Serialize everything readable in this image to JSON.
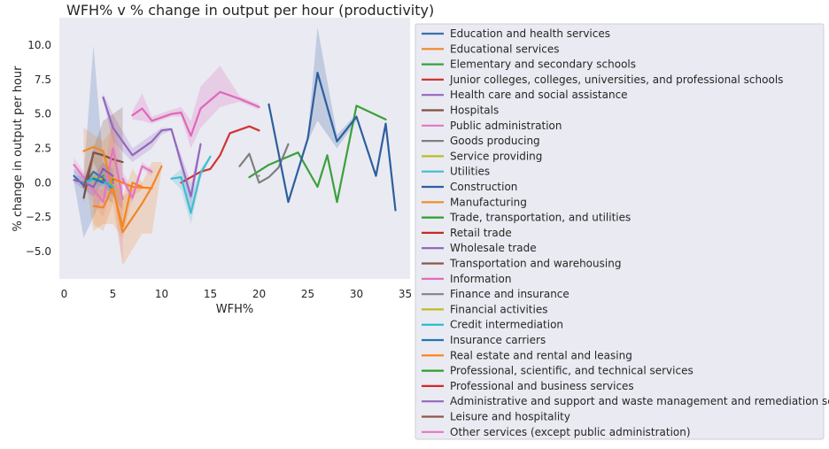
{
  "chart_data": {
    "type": "line",
    "title": "WFH% v % change in output per hour (productivity)",
    "xlabel": "WFH%",
    "ylabel": "% change in output per hour",
    "xlim": [
      -0.5,
      35.5
    ],
    "ylim": [
      -7,
      12
    ],
    "xticks": [
      "0",
      "5",
      "10",
      "15",
      "20",
      "25",
      "30",
      "35"
    ],
    "yticks": [
      "−5.0",
      "−2.5",
      "0.0",
      "2.5",
      "5.0",
      "7.5",
      "10.0"
    ],
    "grid": false,
    "legend_position": "right",
    "series": [
      {
        "name": "Education and health services",
        "color": "#3a6fb0",
        "points": [
          [
            1,
            0.5
          ],
          [
            2,
            -0.2
          ],
          [
            3,
            0.8
          ],
          [
            4,
            0.3
          ],
          [
            5,
            -0.5
          ]
        ],
        "band": [
          [
            1,
            1.0,
            0.0
          ],
          [
            2,
            0.5,
            -4.0
          ],
          [
            3,
            10.0,
            -2.5
          ],
          [
            4,
            1.5,
            -1.0
          ],
          [
            5,
            0.5,
            -1.5
          ]
        ]
      },
      {
        "name": "Educational services",
        "color": "#f0862a",
        "points": [
          [
            3,
            -1.7
          ],
          [
            4,
            -1.8
          ],
          [
            5,
            -0.3
          ],
          [
            6,
            -3.6
          ],
          [
            8,
            -1.5
          ],
          [
            9,
            -0.3
          ],
          [
            10,
            1.2
          ]
        ],
        "band": [
          [
            3,
            -0.5,
            -3.0
          ],
          [
            4,
            -0.5,
            -3.5
          ],
          [
            5,
            0.5,
            -1.5
          ],
          [
            6,
            -1.0,
            -6.0
          ],
          [
            8,
            0.0,
            -3.7
          ],
          [
            9,
            1.5,
            -3.7
          ],
          [
            10,
            1.5,
            1.0
          ]
        ]
      },
      {
        "name": "Elementary and secondary schools",
        "color": "#3aa13a",
        "points": [
          [
            19,
            0.4
          ],
          [
            21,
            1.3
          ],
          [
            24,
            2.2
          ],
          [
            26,
            -0.3
          ],
          [
            27,
            2.0
          ],
          [
            28,
            -1.4
          ],
          [
            30,
            5.6
          ],
          [
            33,
            4.6
          ]
        ]
      },
      {
        "name": "Junior colleges, colleges, universities, and professional schools",
        "color": "#d03434",
        "points": [
          [
            12,
            0.0
          ],
          [
            14,
            0.8
          ],
          [
            15,
            1.0
          ],
          [
            16,
            2.0
          ],
          [
            17,
            3.6
          ],
          [
            19,
            4.1
          ],
          [
            20,
            3.8
          ]
        ]
      },
      {
        "name": "Health care and social assistance",
        "color": "#9467bd",
        "points": [
          [
            4,
            6.2
          ],
          [
            5,
            4.0
          ],
          [
            7,
            2.0
          ],
          [
            9,
            3.0
          ],
          [
            10,
            3.8
          ],
          [
            11,
            3.9
          ],
          [
            13,
            -1.0
          ],
          [
            14,
            2.8
          ]
        ],
        "band": [
          [
            4,
            6.5,
            6.0
          ],
          [
            5,
            5.0,
            3.0
          ],
          [
            7,
            2.5,
            1.5
          ],
          [
            9,
            3.5,
            2.5
          ],
          [
            10,
            4.0,
            3.5
          ],
          [
            11,
            4.0,
            3.8
          ],
          [
            13,
            0.0,
            -2.0
          ],
          [
            14,
            3.0,
            2.5
          ]
        ]
      },
      {
        "name": "Hospitals",
        "color": "#7f4f3d",
        "points": [
          [
            2,
            -1.1
          ],
          [
            3,
            2.2
          ],
          [
            4,
            2.0
          ],
          [
            5,
            1.7
          ],
          [
            6,
            1.5
          ]
        ],
        "band": [
          [
            2,
            -0.5,
            -1.5
          ],
          [
            3,
            2.5,
            1.5
          ],
          [
            4,
            4.5,
            0.0
          ],
          [
            5,
            5.0,
            -1.0
          ],
          [
            6,
            5.5,
            -2.0
          ]
        ]
      },
      {
        "name": "Public administration",
        "color": "#e377c2",
        "points": [
          [
            1,
            1.3
          ],
          [
            2,
            0.4
          ],
          [
            3,
            -0.5
          ],
          [
            4,
            -1.4
          ],
          [
            5,
            2.5
          ],
          [
            6,
            -1.2
          ]
        ],
        "band": [
          [
            1,
            1.8,
            0.8
          ],
          [
            2,
            0.8,
            0.0
          ],
          [
            3,
            0.5,
            -1.5
          ],
          [
            4,
            0.0,
            -2.5
          ],
          [
            5,
            5.0,
            0.0
          ],
          [
            6,
            1.0,
            -6.0
          ]
        ]
      },
      {
        "name": "Goods producing",
        "color": "#7f7f7f",
        "points": [
          [
            18,
            1.2
          ],
          [
            19,
            2.1
          ],
          [
            20,
            0.0
          ],
          [
            21,
            0.4
          ],
          [
            22,
            1.1
          ],
          [
            23,
            2.8
          ]
        ]
      },
      {
        "name": "Service providing",
        "color": "#bcbd22",
        "points": [
          [
            3,
            0.5
          ],
          [
            4,
            0.2
          ]
        ]
      },
      {
        "name": "Utilities",
        "color": "#42bcd0",
        "points": [
          [
            11,
            0.3
          ],
          [
            12,
            0.4
          ],
          [
            13,
            -2.2
          ],
          [
            14,
            0.7
          ],
          [
            15,
            1.9
          ]
        ],
        "band": [
          [
            11,
            0.4,
            0.2
          ],
          [
            12,
            1.0,
            -0.5
          ],
          [
            13,
            -1.0,
            -3.0
          ],
          [
            14,
            1.0,
            0.3
          ],
          [
            15,
            2.0,
            1.8
          ]
        ]
      },
      {
        "name": "Construction",
        "color": "#2c5f9e",
        "points": [
          [
            21,
            5.7
          ],
          [
            23,
            -1.4
          ],
          [
            25,
            3.2
          ],
          [
            26,
            8.0
          ],
          [
            28,
            3.0
          ],
          [
            30,
            4.8
          ],
          [
            32,
            0.5
          ],
          [
            33,
            4.3
          ],
          [
            34,
            -2.0
          ]
        ],
        "band": [
          [
            25,
            3.5,
            3.0
          ],
          [
            26,
            11.3,
            4.5
          ],
          [
            28,
            3.5,
            2.5
          ],
          [
            30,
            5.0,
            4.5
          ]
        ]
      },
      {
        "name": "Manufacturing",
        "color": "#ef8a23",
        "points": [
          [
            2,
            2.3
          ],
          [
            3,
            2.6
          ],
          [
            4,
            2.3
          ],
          [
            5,
            -0.5
          ],
          [
            6,
            -3.2
          ],
          [
            7,
            0.0
          ],
          [
            8,
            -0.3
          ]
        ],
        "band": [
          [
            2,
            4.0,
            1.0
          ],
          [
            3,
            3.5,
            -3.5
          ],
          [
            4,
            3.0,
            -3.0
          ],
          [
            5,
            4.0,
            -3.0
          ],
          [
            6,
            -1.0,
            -4.0
          ],
          [
            7,
            1.0,
            -1.0
          ],
          [
            8,
            0.0,
            -0.5
          ]
        ]
      },
      {
        "name": "Trade, transportation, and utilities",
        "color": "#2ca02c",
        "points": [
          [
            4,
            0.5
          ]
        ]
      },
      {
        "name": "Retail trade",
        "color": "#c62828",
        "points": [
          [
            3,
            -0.3
          ]
        ]
      },
      {
        "name": "Wholesale trade",
        "color": "#8c62b8",
        "points": [
          [
            1,
            0.2
          ],
          [
            2,
            0.0
          ],
          [
            3,
            -0.3
          ],
          [
            4,
            1.0
          ],
          [
            5,
            0.5
          ]
        ],
        "band": [
          [
            1,
            0.5,
            0.0
          ],
          [
            2,
            0.5,
            -0.5
          ],
          [
            3,
            0.5,
            -1.0
          ],
          [
            4,
            1.5,
            0.0
          ],
          [
            5,
            1.0,
            0.0
          ]
        ]
      },
      {
        "name": "Transportation and warehousing",
        "color": "#8c564b",
        "points": [
          [
            4,
            1.0
          ]
        ]
      },
      {
        "name": "Information",
        "color": "#e066ba",
        "points": [
          [
            7,
            4.9
          ],
          [
            8,
            5.4
          ],
          [
            9,
            4.5
          ],
          [
            11,
            5.0
          ],
          [
            12,
            5.1
          ],
          [
            13,
            3.4
          ],
          [
            14,
            5.4
          ],
          [
            16,
            6.6
          ],
          [
            18,
            6.1
          ],
          [
            20,
            5.5
          ]
        ],
        "band": [
          [
            7,
            5.2,
            4.6
          ],
          [
            8,
            6.5,
            4.5
          ],
          [
            9,
            4.8,
            4.3
          ],
          [
            11,
            5.3,
            4.8
          ],
          [
            12,
            5.5,
            4.8
          ],
          [
            13,
            4.5,
            2.5
          ],
          [
            14,
            7.0,
            4.0
          ],
          [
            16,
            8.5,
            5.5
          ],
          [
            18,
            6.3,
            5.9
          ],
          [
            20,
            5.7,
            5.3
          ]
        ]
      },
      {
        "name": "Finance and insurance",
        "color": "#8a8a8a",
        "points": [
          [
            20,
            0.5
          ]
        ]
      },
      {
        "name": "Financial activities",
        "color": "#bcbd22",
        "points": [
          [
            3,
            0.0
          ]
        ]
      },
      {
        "name": "Credit intermediation",
        "color": "#17becf",
        "points": [
          [
            2,
            0.0
          ],
          [
            3,
            0.3
          ],
          [
            4,
            0.1
          ],
          [
            5,
            -0.3
          ]
        ],
        "band": [
          [
            2,
            0.3,
            -0.3
          ],
          [
            3,
            0.6,
            0.0
          ],
          [
            4,
            0.5,
            -0.3
          ],
          [
            5,
            0.0,
            -0.8
          ]
        ]
      },
      {
        "name": "Insurance carriers",
        "color": "#1f77b4",
        "points": [
          [
            3,
            0.3
          ],
          [
            4,
            0.0
          ]
        ]
      },
      {
        "name": "Real estate and rental and leasing",
        "color": "#ff7f0e",
        "points": [
          [
            5,
            0.3
          ],
          [
            7,
            -0.3
          ],
          [
            9,
            -0.4
          ]
        ]
      },
      {
        "name": "Professional, scientific, and technical services",
        "color": "#2ca02c",
        "points": [
          [
            5,
            0.2
          ]
        ]
      },
      {
        "name": "Professional and business services",
        "color": "#d62728",
        "points": [
          [
            4,
            0.2
          ]
        ]
      },
      {
        "name": "Administrative and support and waste management and remediation services",
        "color": "#9467bd",
        "points": [
          [
            5,
            0.0
          ]
        ]
      },
      {
        "name": "Leisure and hospitality",
        "color": "#8c564b",
        "points": [
          [
            2,
            -0.3
          ],
          [
            3,
            2.1
          ]
        ]
      },
      {
        "name": "Other services (except public administration)",
        "color": "#e377c2",
        "points": [
          [
            6,
            0.3
          ],
          [
            7,
            -1.1
          ],
          [
            8,
            1.2
          ],
          [
            9,
            0.8
          ]
        ],
        "band": [
          [
            6,
            0.8,
            0.0
          ],
          [
            7,
            -0.5,
            -1.5
          ],
          [
            8,
            1.5,
            1.0
          ],
          [
            9,
            1.0,
            0.5
          ]
        ]
      }
    ]
  }
}
